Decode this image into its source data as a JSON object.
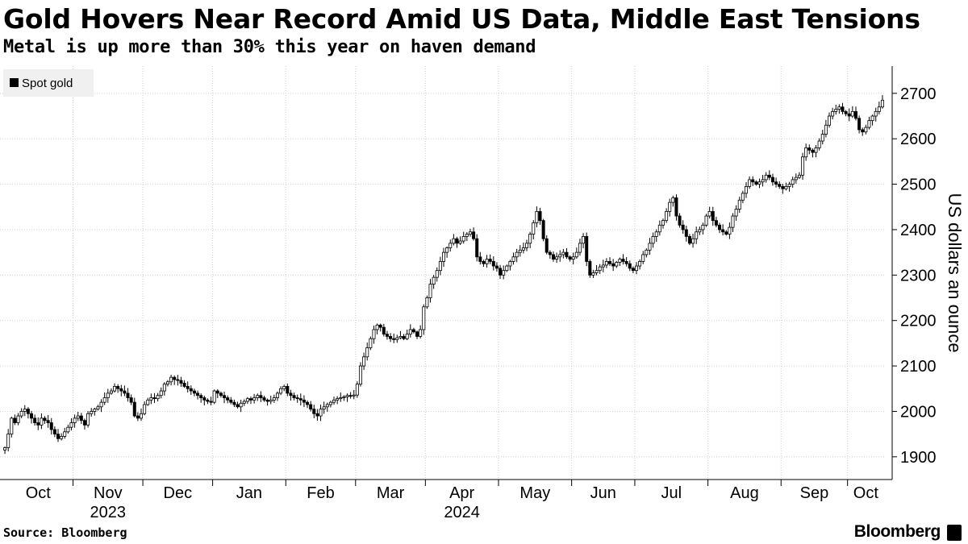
{
  "header": {
    "title": "Gold Hovers Near Record Amid US Data, Middle East Tensions",
    "subtitle": "Metal is up more than 30% this year on haven demand"
  },
  "footer": {
    "source": "Source: Bloomberg",
    "brand": "Bloomberg",
    "brand_icon": "bloomberg-terminal-icon"
  },
  "chart_data": {
    "type": "candlestick",
    "ylabel": "US dollars an ounce",
    "ylim": [
      1850,
      2760
    ],
    "yticks": [
      1900,
      2000,
      2100,
      2200,
      2300,
      2400,
      2500,
      2600,
      2700
    ],
    "y_axis_side": "right",
    "grid": "dotted",
    "legend": {
      "label": "Spot gold",
      "position": "top-left"
    },
    "month_labels": [
      "Oct",
      "Nov",
      "Dec",
      "Jan",
      "Feb",
      "Mar",
      "Apr",
      "May",
      "Jun",
      "Jul",
      "Aug",
      "Sep",
      "Oct"
    ],
    "year_labels": [
      {
        "label": "2023",
        "month_index": 1
      },
      {
        "label": "2024",
        "month_index": 6
      }
    ],
    "series": [
      {
        "name": "Spot gold",
        "months": [
          {
            "month": "Oct 2023",
            "close": [
              1920,
              1950,
              1985,
              1975,
              1990,
              2000,
              2005,
              1995,
              1985,
              1975,
              1970,
              1985,
              1980,
              1975,
              1960,
              1950,
              1940,
              1945,
              1955,
              1965,
              1975
            ]
          },
          {
            "month": "Nov 2023",
            "close": [
              1985,
              1990,
              1980,
              1970,
              1995,
              2000,
              2005,
              2010,
              2020,
              2030,
              2040,
              2045,
              2055,
              2050,
              2045,
              2040,
              2030,
              2020,
              1990,
              1985,
              1995
            ]
          },
          {
            "month": "Dec 2023",
            "close": [
              2015,
              2025,
              2030,
              2028,
              2035,
              2045,
              2060,
              2065,
              2075,
              2070,
              2068,
              2062,
              2055,
              2050,
              2045,
              2040,
              2035,
              2030,
              2025,
              2022,
              2020
            ]
          },
          {
            "month": "Jan 2024",
            "close": [
              2045,
              2040,
              2035,
              2030,
              2025,
              2020,
              2015,
              2010,
              2018,
              2022,
              2028,
              2025,
              2030,
              2035,
              2030,
              2025,
              2022,
              2025,
              2030,
              2040,
              2050,
              2055
            ]
          },
          {
            "month": "Feb 2024",
            "close": [
              2040,
              2035,
              2030,
              2028,
              2025,
              2020,
              2015,
              2005,
              1995,
              1990,
              2005,
              2010,
              2015,
              2020,
              2025,
              2028,
              2030,
              2032,
              2035,
              2034,
              2036
            ]
          },
          {
            "month": "Mar 2024",
            "close": [
              2060,
              2100,
              2120,
              2140,
              2160,
              2180,
              2190,
              2185,
              2170,
              2165,
              2160,
              2158,
              2162,
              2165,
              2160,
              2170,
              2180,
              2175,
              2165,
              2180,
              2230
            ]
          },
          {
            "month": "Apr 2024",
            "close": [
              2250,
              2280,
              2295,
              2310,
              2330,
              2350,
              2360,
              2370,
              2380,
              2370,
              2375,
              2385,
              2390,
              2395,
              2380,
              2340,
              2330,
              2325,
              2335,
              2330,
              2320,
              2315
            ]
          },
          {
            "month": "May 2024",
            "close": [
              2300,
              2310,
              2320,
              2330,
              2340,
              2350,
              2355,
              2360,
              2370,
              2390,
              2415,
              2440,
              2420,
              2380,
              2350,
              2345,
              2335,
              2340,
              2345,
              2350,
              2340,
              2335
            ]
          },
          {
            "month": "Jun 2024",
            "close": [
              2340,
              2350,
              2370,
              2385,
              2330,
              2300,
              2305,
              2310,
              2318,
              2322,
              2330,
              2325,
              2320,
              2328,
              2335,
              2330,
              2325,
              2315,
              2310
            ]
          },
          {
            "month": "Jul 2024",
            "close": [
              2320,
              2330,
              2345,
              2355,
              2370,
              2385,
              2395,
              2410,
              2420,
              2440,
              2460,
              2470,
              2430,
              2410,
              2400,
              2385,
              2370,
              2380,
              2395,
              2400,
              2410,
              2430
            ]
          },
          {
            "month": "Aug 2024",
            "close": [
              2440,
              2420,
              2410,
              2400,
              2395,
              2390,
              2405,
              2430,
              2445,
              2465,
              2480,
              2495,
              2510,
              2505,
              2500,
              2505,
              2510,
              2520,
              2515,
              2505,
              2500,
              2495
            ]
          },
          {
            "month": "Sep 2024",
            "close": [
              2490,
              2495,
              2500,
              2510,
              2515,
              2520,
              2560,
              2580,
              2575,
              2570,
              2580,
              2595,
              2610,
              2630,
              2650,
              2660,
              2665,
              2670,
              2660,
              2655
            ]
          },
          {
            "month": "Oct 2024",
            "close": [
              2650,
              2660,
              2645,
              2620,
              2615,
              2625,
              2640,
              2650,
              2660,
              2670,
              2685
            ]
          }
        ]
      }
    ]
  }
}
